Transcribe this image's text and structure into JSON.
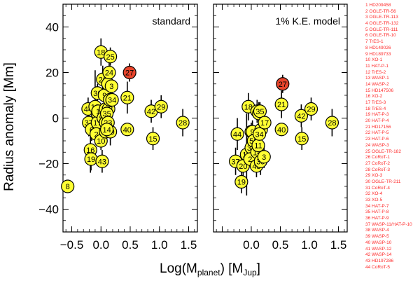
{
  "chart_data": {
    "type": "scatter",
    "ylabel": "Radius anomaly [Mm]",
    "xlabel_main": "Log(M",
    "xlabel_sub": "planet",
    "xlabel_unit": ") [M",
    "xlabel_unit_sub": "Jup",
    "xlabel_close": "]",
    "ylim": [
      -50,
      50
    ],
    "yticks": [
      40,
      20,
      0,
      -20,
      -40
    ],
    "ytick_labels": [
      "40",
      "20",
      "0",
      "−20",
      "−40"
    ],
    "highlight_color": "#e8452c",
    "marker_color": "#ffff33",
    "highlight_id": 27,
    "panels": [
      {
        "title": "standard",
        "xlim": [
          -0.65,
          1.65
        ],
        "xticks": [
          -0.5,
          0.0,
          0.5,
          1.0,
          1.5
        ],
        "xtick_labels": [
          "−0.5",
          "0.0",
          "0.5",
          "1.0",
          "1.5"
        ],
        "points": [
          {
            "id": 8,
            "x": -0.57,
            "y": -30,
            "e": 0
          },
          {
            "id": 44,
            "x": -0.22,
            "y": 4,
            "e": 5
          },
          {
            "id": 37,
            "x": -0.21,
            "y": -2,
            "e": 6
          },
          {
            "id": 6,
            "x": -0.16,
            "y": -5,
            "e": 5
          },
          {
            "id": 16,
            "x": -0.18,
            "y": -14,
            "e": 10
          },
          {
            "id": 19,
            "x": -0.17,
            "y": -18,
            "e": 5
          },
          {
            "id": 12,
            "x": -0.1,
            "y": 5,
            "e": 16
          },
          {
            "id": 36,
            "x": -0.06,
            "y": 11,
            "e": 4
          },
          {
            "id": 31,
            "x": -0.06,
            "y": 2,
            "e": 4
          },
          {
            "id": 17,
            "x": -0.06,
            "y": -2,
            "e": 4
          },
          {
            "id": 1,
            "x": -0.05,
            "y": 3,
            "e": 4
          },
          {
            "id": 2,
            "x": -0.08,
            "y": -7,
            "e": 3
          },
          {
            "id": 18,
            "x": 0.0,
            "y": 29,
            "e": 6
          },
          {
            "id": 26,
            "x": 0.03,
            "y": 17,
            "e": 6
          },
          {
            "id": 9,
            "x": 0.06,
            "y": 10,
            "e": 5
          },
          {
            "id": 43,
            "x": 0.02,
            "y": -19,
            "e": 5
          },
          {
            "id": 10,
            "x": 0.0,
            "y": -10,
            "e": 4
          },
          {
            "id": 53,
            "x": 0.04,
            "y": 0,
            "e": 5
          },
          {
            "id": 22,
            "x": 0.08,
            "y": 4,
            "e": 4
          },
          {
            "id": 4,
            "x": 0.08,
            "y": -2,
            "e": 3
          },
          {
            "id": 41,
            "x": 0.08,
            "y": -6,
            "e": 4
          },
          {
            "id": 13,
            "x": 0.13,
            "y": 4,
            "e": 5
          },
          {
            "id": 35,
            "x": 0.1,
            "y": 2,
            "e": 3
          },
          {
            "id": 23,
            "x": 0.12,
            "y": -2,
            "e": 3
          },
          {
            "id": 39,
            "x": 0.16,
            "y": -6,
            "e": 6
          },
          {
            "id": 14,
            "x": 0.1,
            "y": -5,
            "e": 3
          },
          {
            "id": 11,
            "x": 0.15,
            "y": 8,
            "e": 4
          },
          {
            "id": 34,
            "x": 0.19,
            "y": 8,
            "e": 4
          },
          {
            "id": 5,
            "x": 0.12,
            "y": 15,
            "e": 4
          },
          {
            "id": 24,
            "x": 0.14,
            "y": 20,
            "e": 5
          },
          {
            "id": 25,
            "x": 0.16,
            "y": 27,
            "e": 4
          },
          {
            "id": 3,
            "x": 0.18,
            "y": 14,
            "e": 5
          },
          {
            "id": 27,
            "x": 0.49,
            "y": 20,
            "e": 4
          },
          {
            "id": 21,
            "x": 0.45,
            "y": 9,
            "e": 7
          },
          {
            "id": 40,
            "x": 0.45,
            "y": -5,
            "e": 0
          },
          {
            "id": 42,
            "x": 0.86,
            "y": 3,
            "e": 5
          },
          {
            "id": 29,
            "x": 1.03,
            "y": 5,
            "e": 5
          },
          {
            "id": 15,
            "x": 0.89,
            "y": -9,
            "e": 5
          },
          {
            "id": 28,
            "x": 1.4,
            "y": -2,
            "e": 6
          }
        ]
      },
      {
        "title": "1% K.E. model",
        "xlim": [
          -0.65,
          1.65
        ],
        "xticks": [
          -0.5,
          0.0,
          0.5,
          1.0,
          1.5
        ],
        "xtick_labels": [
          "",
          "0.0",
          "0.5",
          "1.0",
          "1.5"
        ],
        "points": [
          {
            "id": 37,
            "x": -0.27,
            "y": -19,
            "e": 6
          },
          {
            "id": 19,
            "x": -0.17,
            "y": -28,
            "e": 5
          },
          {
            "id": 20,
            "x": -0.14,
            "y": -21,
            "e": 5
          },
          {
            "id": 44,
            "x": -0.24,
            "y": -7,
            "e": 7
          },
          {
            "id": 12,
            "x": -0.08,
            "y": -16,
            "e": 18
          },
          {
            "id": 18,
            "x": -0.05,
            "y": 5,
            "e": 6
          },
          {
            "id": 36,
            "x": 0.0,
            "y": -6,
            "e": 4
          },
          {
            "id": 31,
            "x": 0.0,
            "y": -13,
            "e": 4
          },
          {
            "id": 2,
            "x": -0.02,
            "y": -18,
            "e": 3
          },
          {
            "id": 9,
            "x": 0.02,
            "y": -6,
            "e": 5
          },
          {
            "id": 53,
            "x": 0.04,
            "y": -10,
            "e": 5
          },
          {
            "id": 43,
            "x": 0.09,
            "y": -21,
            "e": 5
          },
          {
            "id": 14,
            "x": 0.1,
            "y": -15,
            "e": 3
          },
          {
            "id": 32,
            "x": 0.1,
            "y": 3,
            "e": 5
          },
          {
            "id": 26,
            "x": 0.13,
            "y": 2,
            "e": 5
          },
          {
            "id": 11,
            "x": 0.12,
            "y": -12,
            "e": 4
          },
          {
            "id": 35,
            "x": 0.15,
            "y": 3,
            "e": 4
          },
          {
            "id": 41,
            "x": 0.17,
            "y": -5,
            "e": 4
          },
          {
            "id": 34,
            "x": 0.14,
            "y": -7,
            "e": 4
          },
          {
            "id": 39,
            "x": 0.16,
            "y": -19,
            "e": 6
          },
          {
            "id": 3,
            "x": 0.22,
            "y": -17,
            "e": 5
          },
          {
            "id": 17,
            "x": 0.23,
            "y": -2,
            "e": 4
          },
          {
            "id": 27,
            "x": 0.54,
            "y": 15,
            "e": 4
          },
          {
            "id": 21,
            "x": 0.52,
            "y": 6,
            "e": 6
          },
          {
            "id": 40,
            "x": 0.52,
            "y": -5,
            "e": 0
          },
          {
            "id": 42,
            "x": 0.86,
            "y": 1,
            "e": 5
          },
          {
            "id": 29,
            "x": 1.03,
            "y": 4,
            "e": 5
          },
          {
            "id": 15,
            "x": 0.87,
            "y": -9,
            "e": 5
          },
          {
            "id": 28,
            "x": 1.39,
            "y": -2,
            "e": 6
          }
        ]
      }
    ]
  },
  "legend": [
    "1 HD209458",
    "2 OGLE-TR-56",
    "3 OGLE-TR-113",
    "4 OGLE-TR-132",
    "5 OGLE-TR-111",
    "6 OGLE-TR-10",
    "7 TrES-1",
    "8 HD149026",
    "9 HD189733",
    "10 XO-1",
    "11 HAT-P-1",
    "12 TrES-2",
    "13 WASP-1",
    "14 WASP-2",
    "15 HD147506",
    "16 XO-2",
    "17 TrES-3",
    "18 TrES-4",
    "19 HAT-P-3",
    "20 HAT-P-4",
    "21 HD17156",
    "22 HAT-P-5",
    "23 HAT-P-6",
    "24 WASP-3",
    "25 OGLE-TR-182",
    "26 CoRoT-1",
    "27 CoRoT-2",
    "28 CoRoT-3",
    "29 XO-3",
    "30 OGLE-TR-211",
    "31 CoRoT-4",
    "32 XO-4",
    "33 XO-5",
    "34 HAT-P-7",
    "35 HAT-P-8",
    "36 HAT-P-9",
    "37 WASP-11/HAT-P-10",
    "38 WASP-4",
    "39 WASP-5",
    "40 WASP-10",
    "41 WASP-12",
    "42 WASP-14",
    "43 HD197286",
    "44 CoRoT-5"
  ]
}
